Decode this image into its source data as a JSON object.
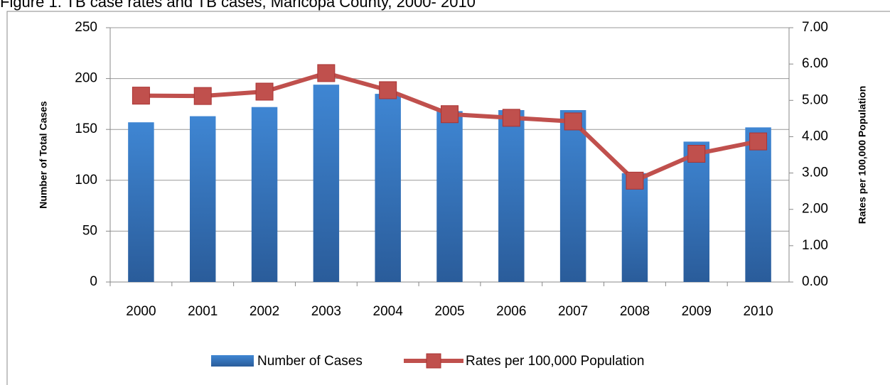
{
  "chart_data": {
    "type": "bar-line",
    "title": "Figure 1.   TB case rates and TB cases, Maricopa County, 2000- 2010",
    "ylabel": "Number of Total Cases",
    "y2label": "Rates per 100,000 Population",
    "categories": [
      "2000",
      "2001",
      "2002",
      "2003",
      "2004",
      "2005",
      "2006",
      "2007",
      "2008",
      "2009",
      "2010"
    ],
    "series": [
      {
        "name": "Number of Cases",
        "type": "bar",
        "color": "#3a78c3",
        "values": [
          157,
          163,
          172,
          194,
          185,
          168,
          169,
          169,
          107,
          138,
          152
        ]
      },
      {
        "name": "Rates per 100,000 Population",
        "type": "line",
        "axis": "y2",
        "color": "#c0504d",
        "values": [
          5.13,
          5.12,
          5.24,
          5.75,
          5.28,
          4.62,
          4.52,
          4.42,
          2.79,
          3.53,
          3.87
        ]
      }
    ],
    "ylim": [
      0,
      250
    ],
    "yticks": [
      0,
      50,
      100,
      150,
      200,
      250
    ],
    "y2lim": [
      0,
      7
    ],
    "y2ticks": [
      {
        "value": 0,
        "label": "0.00"
      },
      {
        "value": 1,
        "label": "1.00"
      },
      {
        "value": 2,
        "label": "2.00"
      },
      {
        "value": 3,
        "label": "3.00"
      },
      {
        "value": 4,
        "label": "4.00"
      },
      {
        "value": 5,
        "label": "5.00"
      },
      {
        "value": 6,
        "label": "6.00"
      },
      {
        "value": 7,
        "label": "7.00"
      }
    ],
    "grid": true
  }
}
